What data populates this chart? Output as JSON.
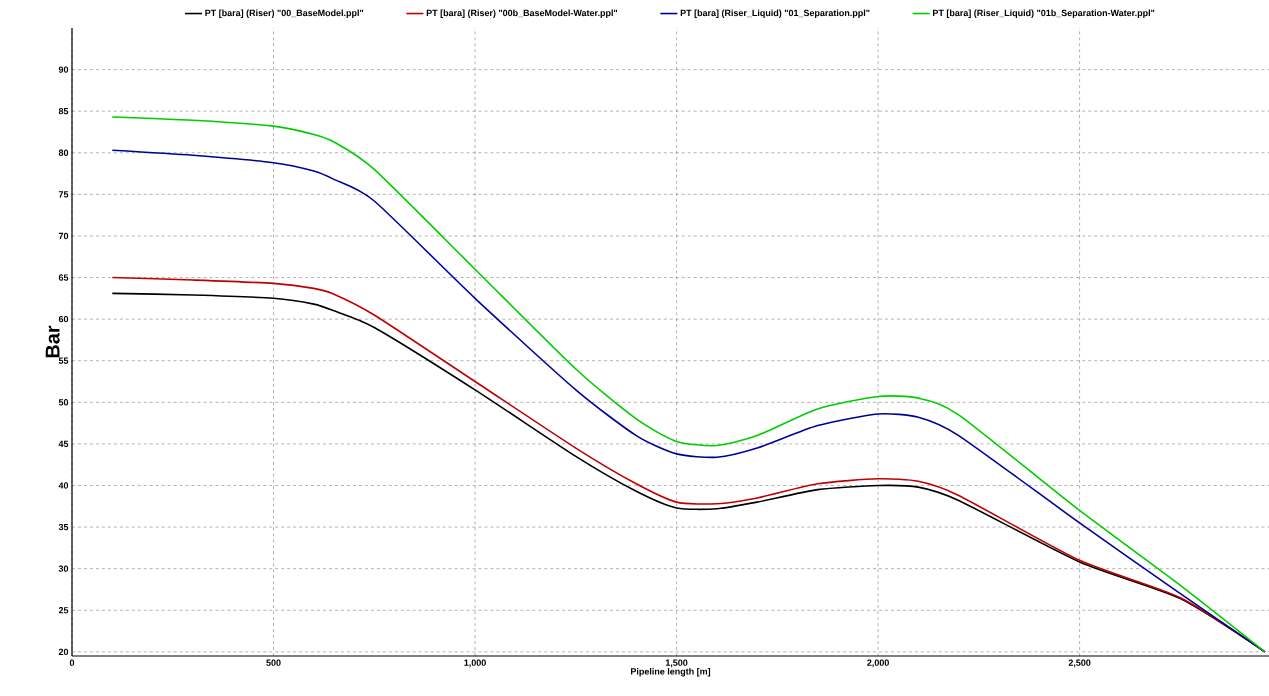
{
  "chart_data": {
    "type": "line",
    "xlabel": "Pipeline length [m]",
    "ylabel": "Bar",
    "x": [
      100,
      300,
      500,
      600,
      650,
      750,
      1000,
      1250,
      1400,
      1500,
      1600,
      1700,
      1850,
      2000,
      2100,
      2200,
      2500,
      2750,
      2960
    ],
    "series": [
      {
        "name": "PT [bara] (Riser) \"00_BaseModel.ppl\"",
        "color": "#000000",
        "values": [
          63.1,
          62.9,
          62.5,
          61.8,
          61,
          59,
          51.5,
          43.5,
          39.3,
          37.3,
          37.2,
          38,
          39.5,
          40,
          39.8,
          38.2,
          30.8,
          26.4,
          20
        ]
      },
      {
        "name": "PT [bara] (Riser) \"00b_BaseModel-Water.ppl\"",
        "color": "#c00000",
        "values": [
          65,
          64.7,
          64.3,
          63.7,
          63,
          60.5,
          52.5,
          44.5,
          40.2,
          38,
          37.8,
          38.5,
          40.2,
          40.8,
          40.5,
          38.8,
          31,
          26.5,
          20
        ]
      },
      {
        "name": "PT [bara] (Riser_Liquid) \"01_Separation.ppl\"",
        "color": "#000099",
        "values": [
          80.3,
          79.7,
          78.8,
          77.8,
          76.8,
          74.2,
          62.5,
          51.5,
          46,
          43.8,
          43.4,
          44.5,
          47.2,
          48.6,
          48.2,
          46,
          35.5,
          27,
          20
        ]
      },
      {
        "name": "PT [bara] (Riser_Liquid) \"01b_Separation-Water.ppl\"",
        "color": "#00cc00",
        "values": [
          84.3,
          83.9,
          83.2,
          82.2,
          81.3,
          78,
          66,
          54,
          48,
          45.3,
          44.8,
          46,
          49.2,
          50.7,
          50.5,
          48.5,
          37,
          28,
          20
        ]
      }
    ],
    "xlim": [
      0,
      2970
    ],
    "ylim": [
      19.5,
      95
    ],
    "xticks": [
      0,
      500,
      {
        "value": 1000,
        "label": "1,000"
      },
      {
        "value": 1500,
        "label": "1,500"
      },
      {
        "value": 2000,
        "label": "2,000"
      },
      {
        "value": 2500,
        "label": "2,500"
      }
    ],
    "yticks": [
      20,
      25,
      30,
      35,
      40,
      45,
      50,
      55,
      60,
      65,
      70,
      75,
      80,
      85,
      90
    ],
    "grid": true,
    "legend": "top",
    "marker": "none",
    "line_style": "solid"
  }
}
